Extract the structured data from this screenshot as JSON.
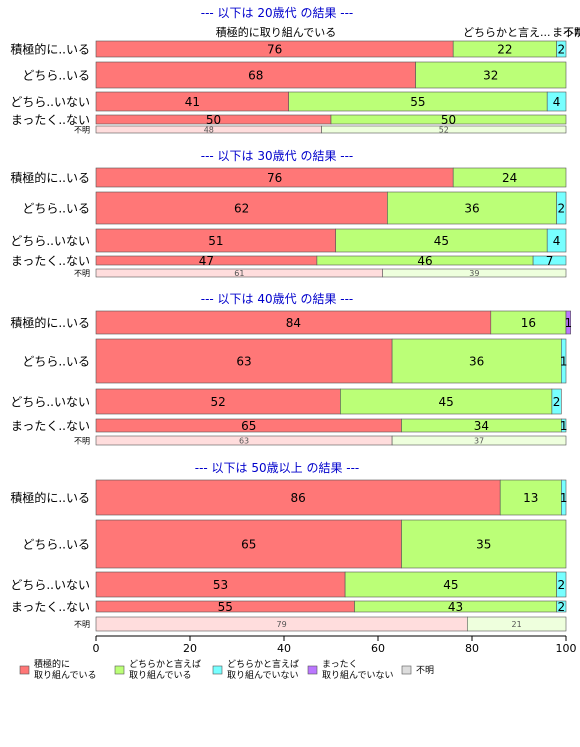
{
  "palette": {
    "positive": "#ff7777",
    "somewhat": "#bbff77",
    "somewhat_not": "#77ffff",
    "not_at_all": "#bb77ff",
    "unknown": "#dddddd",
    "title": "#0000cc",
    "unknown_row_colors": [
      "#ffdddd",
      "#eeffdd",
      "#ddffff",
      "#eeddff",
      "#f2f2f2"
    ]
  },
  "legend": {
    "items": [
      {
        "label": [
          "積極的に",
          "取り組んでいる"
        ],
        "color": "#ff7777"
      },
      {
        "label": [
          "どちらかと言えば",
          "取り組んでいる"
        ],
        "color": "#bbff77"
      },
      {
        "label": [
          "どちらかと言えば",
          "取り組んでいない"
        ],
        "color": "#77ffff"
      },
      {
        "label": [
          "まったく",
          "取り組んでいない"
        ],
        "color": "#bb77ff"
      },
      {
        "label": [
          "不明"
        ],
        "color": "#dddddd"
      }
    ]
  },
  "header_labels": {
    "col1": "積極的に取り組んでいる",
    "col2": "どちらかと言え...",
    "col3": "まったく...",
    "col4": "不明"
  },
  "chart_data": {
    "type": "bar",
    "orientation": "horizontal",
    "stacked": true,
    "xlim": [
      0,
      100
    ],
    "xticks": [
      0,
      20,
      40,
      60,
      80,
      100
    ],
    "row_labels": [
      "積極的に..いる",
      "どちら..いる",
      "どちら..いない",
      "まったく..ない",
      "不明"
    ],
    "panels": [
      {
        "title": "--- 以下は 20歳代 の結果 ---",
        "rows": [
          {
            "label": "積極的に..いる",
            "values": [
              76,
              22,
              2,
              0
            ]
          },
          {
            "label": "どちら..いる",
            "values": [
              68,
              32,
              0,
              0
            ]
          },
          {
            "label": "どちら..いない",
            "values": [
              41,
              55,
              4,
              0
            ]
          },
          {
            "label": "まったく..ない",
            "values": [
              50,
              50,
              0,
              0
            ]
          },
          {
            "label": "不明",
            "values": [
              48,
              52,
              0,
              0
            ]
          }
        ]
      },
      {
        "title": "--- 以下は 30歳代 の結果 ---",
        "rows": [
          {
            "label": "積極的に..いる",
            "values": [
              76,
              24,
              0,
              0
            ]
          },
          {
            "label": "どちら..いる",
            "values": [
              62,
              36,
              2,
              0
            ]
          },
          {
            "label": "どちら..いない",
            "values": [
              51,
              45,
              4,
              0
            ]
          },
          {
            "label": "まったく..ない",
            "values": [
              47,
              46,
              7,
              0
            ]
          },
          {
            "label": "不明",
            "values": [
              61,
              39,
              0,
              0
            ]
          }
        ]
      },
      {
        "title": "--- 以下は 40歳代 の結果 ---",
        "rows": [
          {
            "label": "積極的に..いる",
            "values": [
              84,
              16,
              0,
              1
            ]
          },
          {
            "label": "どちら..いる",
            "values": [
              63,
              36,
              1,
              0
            ]
          },
          {
            "label": "どちら..いない",
            "values": [
              52,
              45,
              2,
              0
            ]
          },
          {
            "label": "まったく..ない",
            "values": [
              65,
              34,
              1,
              0
            ]
          },
          {
            "label": "不明",
            "values": [
              63,
              37,
              0,
              0
            ]
          }
        ]
      },
      {
        "title": "--- 以下は 50歳以上 の結果 ---",
        "rows": [
          {
            "label": "積極的に..いる",
            "values": [
              86,
              13,
              1,
              0
            ]
          },
          {
            "label": "どちら..いる",
            "values": [
              65,
              35,
              0,
              0
            ]
          },
          {
            "label": "どちら..いない",
            "values": [
              53,
              45,
              2,
              0
            ]
          },
          {
            "label": "まったく..ない",
            "values": [
              55,
              43,
              2,
              0
            ]
          },
          {
            "label": "不明",
            "values": [
              79,
              21,
              0,
              0
            ]
          }
        ]
      }
    ]
  }
}
